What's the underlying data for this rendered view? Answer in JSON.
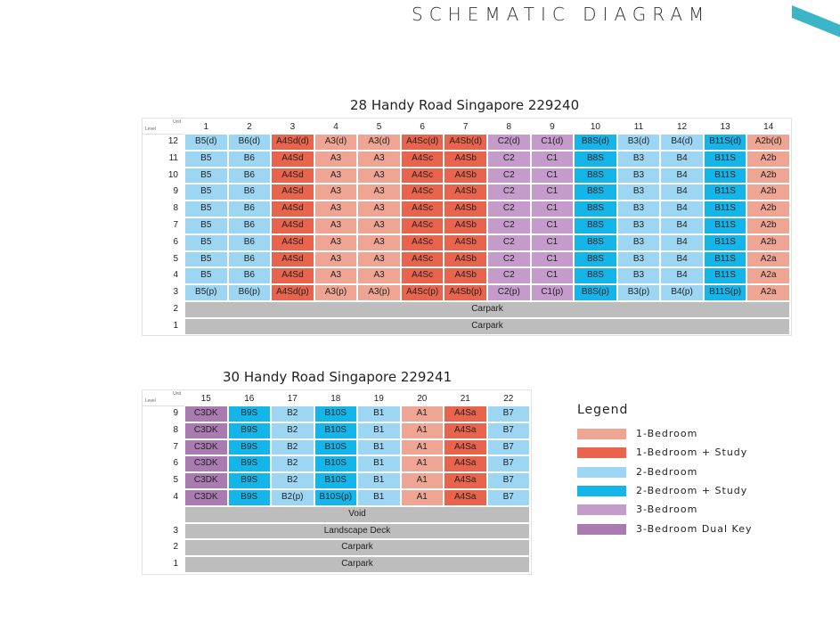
{
  "header": {
    "title": "SCHEMATIC DIAGRAM"
  },
  "colors": {
    "1B": "#eea593",
    "1BS": "#e8644c",
    "2B": "#9dd6f3",
    "2BS": "#14b5e9",
    "3B": "#c49bcb",
    "3DK": "#a97bb1",
    "common": "#bdbdbd",
    "accent": "#3cb6c6"
  },
  "tables": [
    {
      "title": "28 Handy Road Singapore 229240",
      "unit_label": "Unit",
      "level_label": "Level",
      "units": [
        "1",
        "2",
        "3",
        "4",
        "5",
        "6",
        "7",
        "8",
        "9",
        "10",
        "11",
        "12",
        "13",
        "14"
      ],
      "types": [
        "2B",
        "2B",
        "1BS",
        "1B",
        "1B",
        "1BS",
        "1BS",
        "3B",
        "3B",
        "2BS",
        "2B",
        "2B",
        "2BS",
        "1B"
      ],
      "rows": [
        {
          "level": "12",
          "cells": [
            "B5(d)",
            "B6(d)",
            "A4Sd(d)",
            "A3(d)",
            "A3(d)",
            "A4Sc(d)",
            "A4Sb(d)",
            "C2(d)",
            "C1(d)",
            "B8S(d)",
            "B3(d)",
            "B4(d)",
            "B11S(d)",
            "A2b(d)"
          ]
        },
        {
          "level": "11",
          "cells": [
            "B5",
            "B6",
            "A4Sd",
            "A3",
            "A3",
            "A4Sc",
            "A4Sb",
            "C2",
            "C1",
            "B8S",
            "B3",
            "B4",
            "B11S",
            "A2b"
          ]
        },
        {
          "level": "10",
          "cells": [
            "B5",
            "B6",
            "A4Sd",
            "A3",
            "A3",
            "A4Sc",
            "A4Sb",
            "C2",
            "C1",
            "B8S",
            "B3",
            "B4",
            "B11S",
            "A2b"
          ]
        },
        {
          "level": "9",
          "cells": [
            "B5",
            "B6",
            "A4Sd",
            "A3",
            "A3",
            "A4Sc",
            "A4Sb",
            "C2",
            "C1",
            "B8S",
            "B3",
            "B4",
            "B11S",
            "A2b"
          ]
        },
        {
          "level": "8",
          "cells": [
            "B5",
            "B6",
            "A4Sd",
            "A3",
            "A3",
            "A4Sc",
            "A4Sb",
            "C2",
            "C1",
            "B8S",
            "B3",
            "B4",
            "B11S",
            "A2b"
          ]
        },
        {
          "level": "7",
          "cells": [
            "B5",
            "B6",
            "A4Sd",
            "A3",
            "A3",
            "A4Sc",
            "A4Sb",
            "C2",
            "C1",
            "B8S",
            "B3",
            "B4",
            "B11S",
            "A2b"
          ]
        },
        {
          "level": "6",
          "cells": [
            "B5",
            "B6",
            "A4Sd",
            "A3",
            "A3",
            "A4Sc",
            "A4Sb",
            "C2",
            "C1",
            "B8S",
            "B3",
            "B4",
            "B11S",
            "A2b"
          ]
        },
        {
          "level": "5",
          "cells": [
            "B5",
            "B6",
            "A4Sd",
            "A3",
            "A3",
            "A4Sc",
            "A4Sb",
            "C2",
            "C1",
            "B8S",
            "B3",
            "B4",
            "B11S",
            "A2a"
          ]
        },
        {
          "level": "4",
          "cells": [
            "B5",
            "B6",
            "A4Sd",
            "A3",
            "A3",
            "A4Sc",
            "A4Sb",
            "C2",
            "C1",
            "B8S",
            "B3",
            "B4",
            "B11S",
            "A2a"
          ]
        },
        {
          "level": "3",
          "cells": [
            "B5(p)",
            "B6(p)",
            "A4Sd(p)",
            "A3(p)",
            "A3(p)",
            "A4Sc(p)",
            "A4Sb(p)",
            "C2(p)",
            "C1(p)",
            "B8S(p)",
            "B3(p)",
            "B4(p)",
            "B11S(p)",
            "A2a"
          ]
        }
      ],
      "common_rows": [
        {
          "level": "2",
          "label": "Carpark"
        },
        {
          "level": "1",
          "label": "Carpark"
        }
      ]
    },
    {
      "title": "30 Handy Road Singapore 229241",
      "unit_label": "Unit",
      "level_label": "Level",
      "units": [
        "15",
        "16",
        "17",
        "18",
        "19",
        "20",
        "21",
        "22"
      ],
      "types": [
        "3DK",
        "2BS",
        "2B",
        "2BS",
        "2B",
        "1B",
        "1BS",
        "2B"
      ],
      "rows": [
        {
          "level": "9",
          "cells": [
            "C3DK",
            "B9S",
            "B2",
            "B10S",
            "B1",
            "A1",
            "A4Sa",
            "B7"
          ]
        },
        {
          "level": "8",
          "cells": [
            "C3DK",
            "B9S",
            "B2",
            "B10S",
            "B1",
            "A1",
            "A4Sa",
            "B7"
          ]
        },
        {
          "level": "7",
          "cells": [
            "C3DK",
            "B9S",
            "B2",
            "B10S",
            "B1",
            "A1",
            "A4Sa",
            "B7"
          ]
        },
        {
          "level": "6",
          "cells": [
            "C3DK",
            "B9S",
            "B2",
            "B10S",
            "B1",
            "A1",
            "A4Sa",
            "B7"
          ]
        },
        {
          "level": "5",
          "cells": [
            "C3DK",
            "B9S",
            "B2",
            "B10S",
            "B1",
            "A1",
            "A4Sa",
            "B7"
          ]
        },
        {
          "level": "4",
          "cells": [
            "C3DK",
            "B9S",
            "B2(p)",
            "B10S(p)",
            "B1",
            "A1",
            "A4Sa",
            "B7"
          ]
        }
      ],
      "common_rows": [
        {
          "level": "",
          "label": "Void"
        },
        {
          "level": "3",
          "label": "Landscape Deck"
        },
        {
          "level": "2",
          "label": "Carpark"
        },
        {
          "level": "1",
          "label": "Carpark"
        }
      ]
    }
  ],
  "legend": {
    "title": "Legend",
    "items": [
      {
        "type": "1B",
        "label": "1-Bedroom"
      },
      {
        "type": "1BS",
        "label": "1-Bedroom + Study"
      },
      {
        "type": "2B",
        "label": "2-Bedroom"
      },
      {
        "type": "2BS",
        "label": "2-Bedroom + Study"
      },
      {
        "type": "3B",
        "label": "3-Bedroom"
      },
      {
        "type": "3DK",
        "label": "3-Bedroom Dual Key"
      }
    ]
  }
}
